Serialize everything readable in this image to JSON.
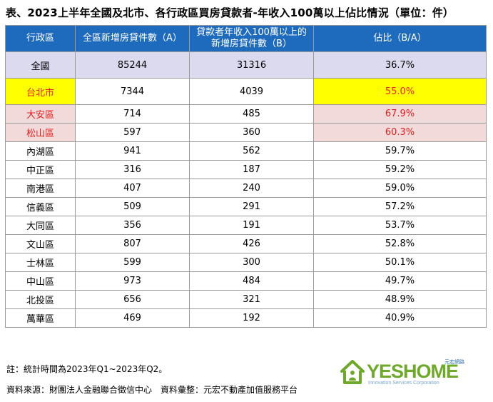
{
  "title": "表、2023上半年全國及北市、各行政區買房貸款者-年收入100萬以上佔比情況（單位：件）",
  "table": {
    "headers": {
      "district": "行政區",
      "total": "全區新增房貸件數（A）",
      "high_income_line1": "貸款者年收入100萬以上的",
      "high_income_line2": "新增房貸件數（B）",
      "ratio": "佔比（B/A）"
    },
    "nation": {
      "district": "全國",
      "total": "85244",
      "high": "31316",
      "ratio": "36.7%"
    },
    "taipei": {
      "district": "台北市",
      "total": "7344",
      "high": "4039",
      "ratio": "55.0%"
    },
    "rows": [
      {
        "district": "大安區",
        "total": "714",
        "high": "485",
        "ratio": "67.9%"
      },
      {
        "district": "松山區",
        "total": "597",
        "high": "360",
        "ratio": "60.3%"
      },
      {
        "district": "內湖區",
        "total": "941",
        "high": "562",
        "ratio": "59.7%"
      },
      {
        "district": "中正區",
        "total": "316",
        "high": "187",
        "ratio": "59.2%"
      },
      {
        "district": "南港區",
        "total": "407",
        "high": "240",
        "ratio": "59.0%"
      },
      {
        "district": "信義區",
        "total": "509",
        "high": "291",
        "ratio": "57.2%"
      },
      {
        "district": "大同區",
        "total": "356",
        "high": "191",
        "ratio": "53.7%"
      },
      {
        "district": "文山區",
        "total": "807",
        "high": "426",
        "ratio": "52.8%"
      },
      {
        "district": "士林區",
        "total": "599",
        "high": "300",
        "ratio": "50.1%"
      },
      {
        "district": "中山區",
        "total": "973",
        "high": "484",
        "ratio": "49.7%"
      },
      {
        "district": "北投區",
        "total": "656",
        "high": "321",
        "ratio": "48.9%"
      },
      {
        "district": "萬華區",
        "total": "469",
        "high": "192",
        "ratio": "40.9%"
      }
    ]
  },
  "notes": {
    "note": "註：統計時間為2023年Q1~2023年Q2。",
    "source": "資料來源：財團法人金融聯合徵信中心　資料彙整：元宏不動產加值服務平台"
  },
  "logo": {
    "name": "YESHOME",
    "subtitle": "Innovation Services Corporation",
    "cn_text": "元宏網路",
    "brand_color": "#6fa92b"
  }
}
